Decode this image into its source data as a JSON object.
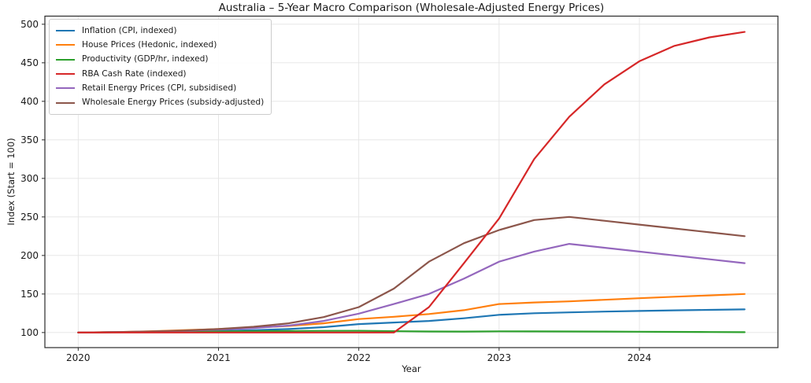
{
  "chart_data": {
    "type": "line",
    "title": "Australia – 5-Year Macro Comparison (Wholesale-Adjusted Energy Prices)",
    "xlabel": "Year",
    "ylabel": "Index (Start = 100)",
    "grid": true,
    "legend_position": "upper left",
    "xlim": [
      2019.7625,
      2024.9875
    ],
    "ylim": [
      80.45,
      510.55
    ],
    "xticks": [
      2020,
      2021,
      2022,
      2023,
      2024
    ],
    "yticks": [
      100,
      150,
      200,
      250,
      300,
      350,
      400,
      450,
      500
    ],
    "x": [
      2020.0,
      2020.25,
      2020.5,
      2020.75,
      2021.0,
      2021.25,
      2021.5,
      2021.75,
      2022.0,
      2022.25,
      2022.5,
      2022.75,
      2023.0,
      2023.25,
      2023.5,
      2023.75,
      2024.0,
      2024.25,
      2024.5,
      2024.75
    ],
    "series": [
      {
        "id": "inflation",
        "name": "Inflation (CPI, indexed)",
        "color": "#1f77b4",
        "values": [
          100,
          100.4,
          100.8,
          101.3,
          102,
          103,
          104.5,
          107,
          111,
          113,
          115,
          118.5,
          123,
          125,
          126.2,
          127.2,
          128,
          128.8,
          129.4,
          130
        ]
      },
      {
        "id": "house-prices",
        "name": "House Prices (Hedonic, indexed)",
        "color": "#ff7f0e",
        "values": [
          100,
          100.6,
          101.5,
          103,
          104.5,
          106.5,
          108.5,
          112,
          117.5,
          120.5,
          124,
          129,
          137,
          139,
          140.5,
          142.5,
          144.5,
          146.5,
          148.2,
          150
        ]
      },
      {
        "id": "productivity",
        "name": "Productivity (GDP/hr, indexed)",
        "color": "#2ca02c",
        "values": [
          100,
          100.3,
          100.7,
          101,
          101.4,
          101.7,
          102,
          102.2,
          102.3,
          101.8,
          101.4,
          101.3,
          101.6,
          101.5,
          101.4,
          101.3,
          101.1,
          100.9,
          100.7,
          100.5
        ]
      },
      {
        "id": "rba-cash-rate",
        "name": "RBA Cash Rate (indexed)",
        "color": "#d62728",
        "values": [
          100,
          100,
          100,
          100,
          100,
          100,
          100,
          100,
          100,
          100,
          133,
          190,
          248,
          325,
          380,
          422,
          452,
          472,
          483,
          490
        ]
      },
      {
        "id": "retail-energy",
        "name": "Retail Energy Prices (CPI, subsidised)",
        "color": "#9467bd",
        "values": [
          100,
          100.5,
          101.2,
          102.2,
          103.8,
          105.8,
          109,
          115,
          124.5,
          137,
          150,
          170,
          192,
          205,
          215,
          210,
          205,
          200,
          195,
          190
        ]
      },
      {
        "id": "wholesale-energy",
        "name": "Wholesale Energy Prices (subsidy-adjusted)",
        "color": "#8c564b",
        "values": [
          100,
          100.6,
          101.4,
          102.6,
          104.5,
          107.5,
          112,
          120,
          133,
          157,
          192,
          216,
          233,
          246,
          250,
          245,
          240,
          235,
          230,
          225
        ]
      }
    ]
  }
}
